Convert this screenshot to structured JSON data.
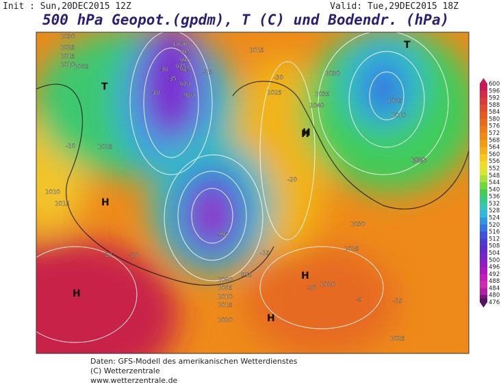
{
  "header": {
    "init": "Init : Sun,20DEC2015 12Z",
    "valid": "Valid: Tue,29DEC2015 18Z",
    "title": "500 hPa Geopot.(gpdm), T (C) und Bodendr. (hPa)"
  },
  "colorbar": {
    "labels": [
      "600",
      "596",
      "592",
      "588",
      "584",
      "580",
      "576",
      "572",
      "568",
      "564",
      "560",
      "556",
      "552",
      "548",
      "544",
      "540",
      "536",
      "532",
      "528",
      "524",
      "520",
      "516",
      "512",
      "508",
      "504",
      "500",
      "496",
      "492",
      "488",
      "484",
      "480",
      "476"
    ],
    "colors": [
      "#c8185a",
      "#d42a4a",
      "#dc3a3a",
      "#e24a2e",
      "#e65a22",
      "#ea6a1c",
      "#ee7a18",
      "#f08a14",
      "#f29c12",
      "#f4b016",
      "#f6c81e",
      "#f2dc2a",
      "#d8e830",
      "#a6e238",
      "#6ed83e",
      "#44cc56",
      "#38c88a",
      "#34c6b8",
      "#30b8dc",
      "#3096e4",
      "#3474e4",
      "#3c54dc",
      "#4a3cd4",
      "#5e2ccc",
      "#7624c8",
      "#8e1ec4",
      "#aa18c0",
      "#c41cb8",
      "#d22ab0",
      "#b020a0",
      "#7a1478",
      "#561060"
    ]
  },
  "map": {
    "labels": [
      "1030",
      "1025",
      "1015",
      "1010",
      "1005",
      "T",
      "1000",
      "995",
      "990",
      "985",
      "980",
      "975",
      "970",
      "-35",
      "-40",
      "-30",
      "-25",
      "1015",
      "1035",
      "1040",
      "H",
      "T",
      "1005",
      "1010",
      "-20",
      "1025",
      "H",
      "H",
      "1010",
      "1015",
      "1030",
      "1020",
      "-10",
      "H",
      "-15",
      "1020",
      "1025",
      "H",
      "-20",
      "1000",
      "1005",
      "1010",
      "1015",
      "1020",
      "990",
      "995",
      "1025",
      "-30",
      "1030",
      "1020",
      "1025",
      "-10",
      "-5",
      "H",
      "-10",
      "-15"
    ]
  },
  "footer": {
    "line1": "Daten: GFS-Modell des amerikanischen Wetterdienstes",
    "line2": "(C) Wetterzentrale",
    "line3": "www.wetterzentrale.de"
  }
}
